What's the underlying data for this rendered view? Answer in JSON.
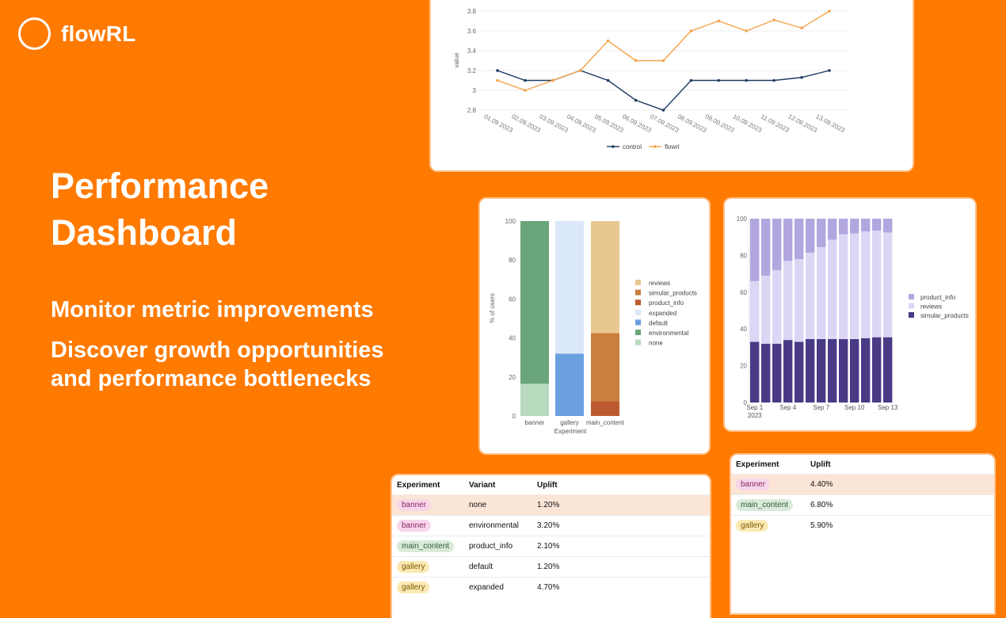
{
  "brand": {
    "name": "flowRL"
  },
  "hero": {
    "title": "Performance Dashboard",
    "taglines": [
      "Monitor metric improvements",
      "Discover growth opportunities and performance bottlenecks"
    ]
  },
  "colors": {
    "background": "#ff7a00",
    "control": "#1f3b63",
    "flowrl": "#f5a24b",
    "pill_banner": "#f7d6ea",
    "pill_main_content": "#d9ead9",
    "pill_gallery": "#fbe9b3",
    "row_highlight": "#fbe5d6"
  },
  "chart_data": [
    {
      "type": "line",
      "ylabel": "value",
      "ylim": [
        2.8,
        3.8
      ],
      "yticks": [
        "2.8",
        "3",
        "3.2",
        "3.4",
        "3.6",
        "3.8"
      ],
      "x": [
        "01.09.2023",
        "02.09.2023",
        "03.09.2023",
        "04.09.2023",
        "05.09.2023",
        "06.09.2023",
        "07.09.2023",
        "08.09.2023",
        "09.09.2023",
        "10.09.2023",
        "11.09.2023",
        "12.09.2023",
        "13.09.2023"
      ],
      "series": [
        {
          "name": "control",
          "color": "#1f3b63",
          "values": [
            3.2,
            3.1,
            3.1,
            3.2,
            3.1,
            2.9,
            2.8,
            3.1,
            3.1,
            3.1,
            3.1,
            3.13,
            3.2
          ]
        },
        {
          "name": "flowrl",
          "color": "#f5a24b",
          "values": [
            3.1,
            3.0,
            3.1,
            3.2,
            3.5,
            3.3,
            3.3,
            3.6,
            3.7,
            3.6,
            3.71,
            3.63,
            3.8
          ]
        }
      ],
      "legend": "bottom"
    },
    {
      "type": "bar",
      "stacked": true,
      "xlabel": "Experiment",
      "ylabel": "% of users",
      "ylim": [
        0,
        100
      ],
      "yticks": [
        "0",
        "20",
        "40",
        "60",
        "80",
        "100"
      ],
      "categories": [
        "banner",
        "gallery",
        "main_content"
      ],
      "series": [
        {
          "name": "none",
          "color": "#b7d9be",
          "values": [
            16.5,
            0,
            0
          ]
        },
        {
          "name": "environmental",
          "color": "#6ba57a",
          "values": [
            83.5,
            0,
            0
          ]
        },
        {
          "name": "default",
          "color": "#6a9fe0",
          "values": [
            0,
            32,
            0
          ]
        },
        {
          "name": "expanded",
          "color": "#dbe8f9",
          "values": [
            0,
            68,
            0
          ]
        },
        {
          "name": "product_info",
          "color": "#bd5a2f",
          "values": [
            0,
            0,
            7.5
          ]
        },
        {
          "name": "simular_products",
          "color": "#c97f3e",
          "values": [
            0,
            0,
            35
          ]
        },
        {
          "name": "reviews",
          "color": "#e8c890",
          "values": [
            0,
            0,
            57.5
          ]
        }
      ],
      "legend_order": [
        "reviews",
        "simular_products",
        "product_info",
        "expanded",
        "default",
        "environmental",
        "none"
      ],
      "legend": "right"
    },
    {
      "type": "bar",
      "stacked": true,
      "ylim": [
        0,
        100
      ],
      "yticks": [
        "0",
        "20",
        "40",
        "60",
        "80",
        "100"
      ],
      "xtick_labels": [
        "Sep 1\n2023",
        "Sep 4",
        "Sep 7",
        "Sep 10",
        "Sep 13"
      ],
      "x": [
        "2023-09-01",
        "2023-09-02",
        "2023-09-03",
        "2023-09-04",
        "2023-09-05",
        "2023-09-06",
        "2023-09-07",
        "2023-09-08",
        "2023-09-09",
        "2023-09-10",
        "2023-09-11",
        "2023-09-12",
        "2023-09-13"
      ],
      "series": [
        {
          "name": "simular_products",
          "color": "#4a3a85",
          "values": [
            33,
            32,
            32,
            34,
            33,
            34.5,
            34.5,
            34.5,
            34.5,
            34.5,
            35,
            35.5,
            35.5
          ]
        },
        {
          "name": "reviews",
          "color": "#dcd6f5",
          "values": [
            33,
            37,
            40,
            43,
            45,
            47,
            50,
            54,
            57,
            57.5,
            58,
            58,
            57
          ]
        },
        {
          "name": "product_info",
          "color": "#b2a6df",
          "values": [
            34,
            31,
            28,
            23,
            22,
            18.5,
            15.5,
            11.5,
            8.5,
            8,
            7,
            6.5,
            7.5
          ]
        }
      ],
      "legend_order": [
        "product_info",
        "reviews",
        "simular_products"
      ],
      "legend": "right"
    }
  ],
  "table1": {
    "headers": [
      "Experiment",
      "Variant",
      "Uplift"
    ],
    "rows": [
      {
        "experiment": "banner",
        "variant": "none",
        "uplift": "1.20%"
      },
      {
        "experiment": "banner",
        "variant": "environmental",
        "uplift": "3.20%"
      },
      {
        "experiment": "main_content",
        "variant": "product_info",
        "uplift": "2.10%"
      },
      {
        "experiment": "gallery",
        "variant": "default",
        "uplift": "1.20%"
      },
      {
        "experiment": "gallery",
        "variant": "expanded",
        "uplift": "4.70%"
      }
    ]
  },
  "table2": {
    "headers": [
      "Experiment",
      "Uplift"
    ],
    "rows": [
      {
        "experiment": "banner",
        "uplift": "4.40%"
      },
      {
        "experiment": "main_content",
        "uplift": "6.80%"
      },
      {
        "experiment": "gallery",
        "uplift": "5.90%"
      }
    ]
  }
}
